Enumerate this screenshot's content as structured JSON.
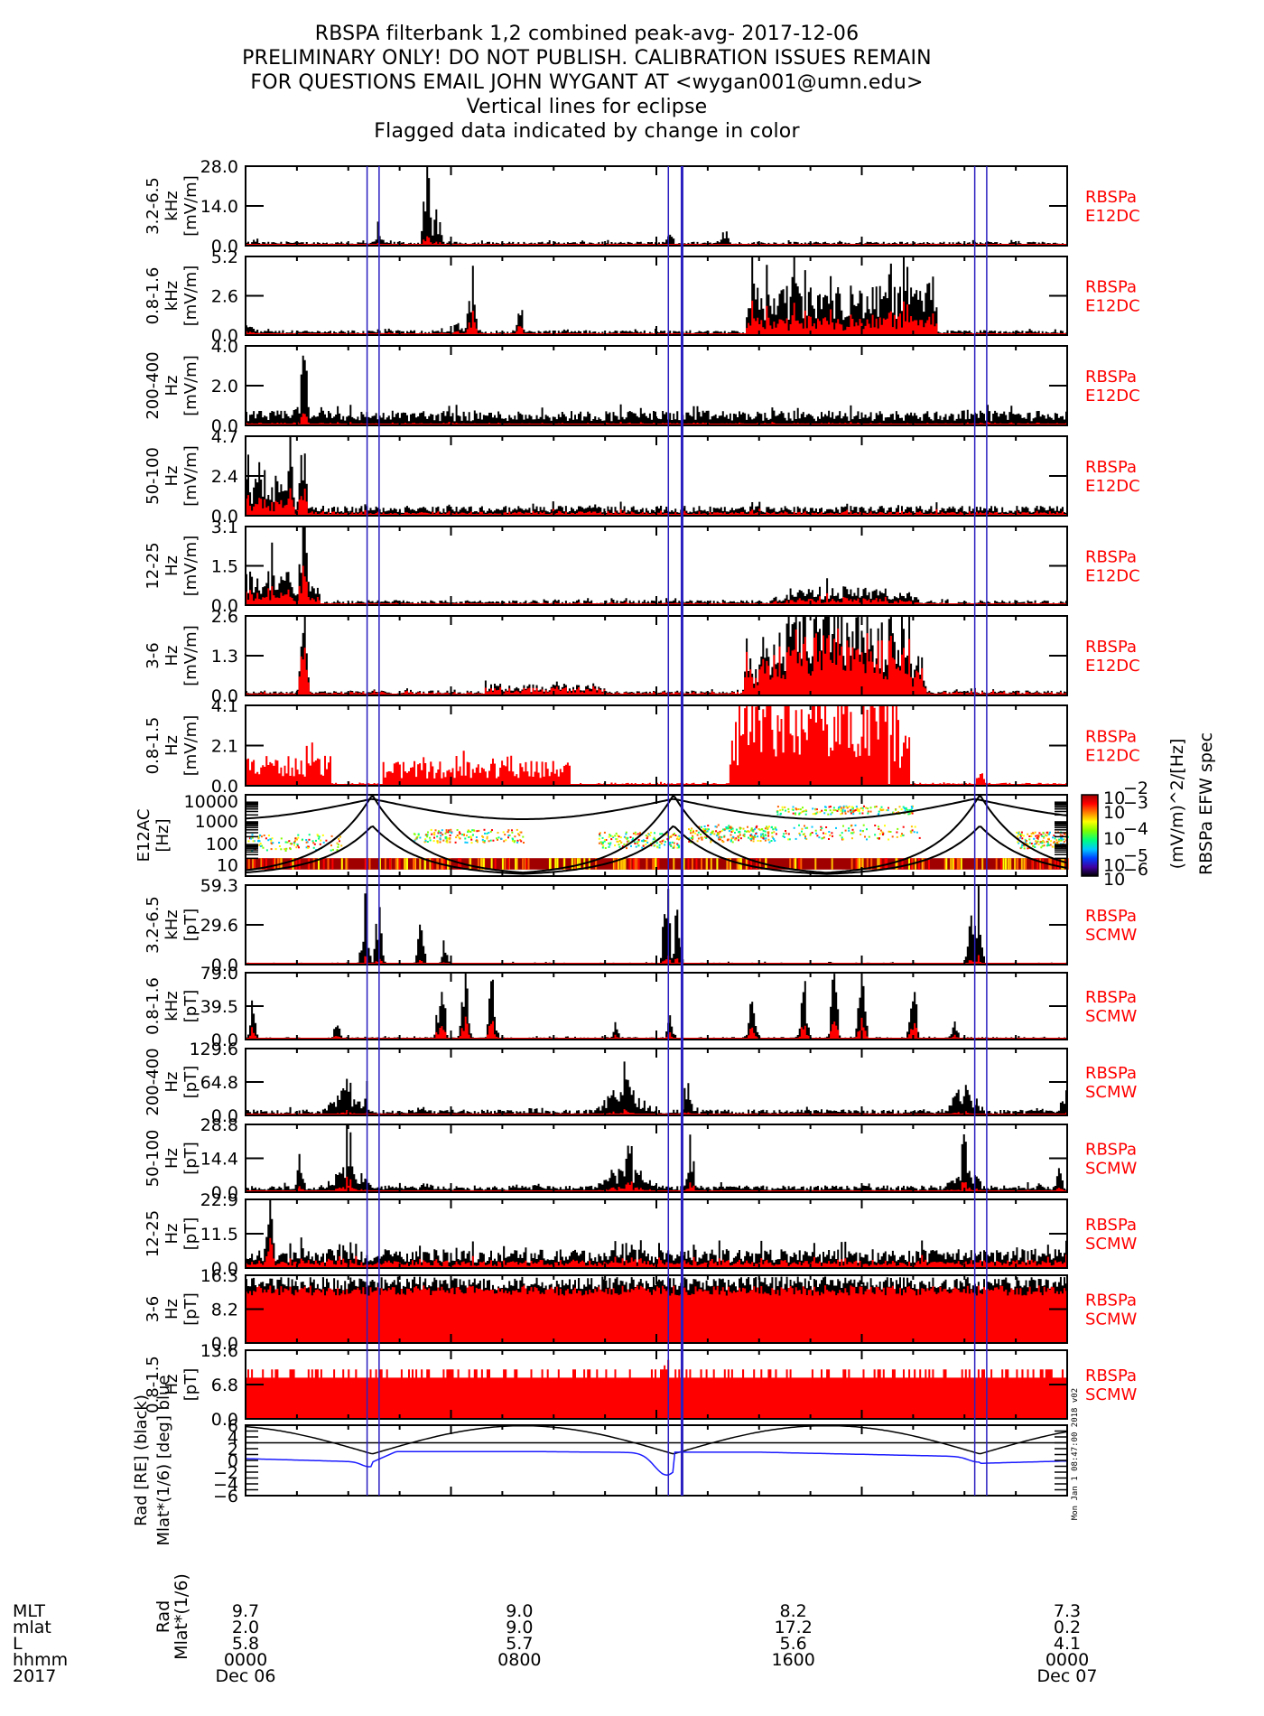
{
  "title": {
    "lines": [
      "RBSPA filterbank 1,2 combined peak-avg- 2017-12-06",
      "PRELIMINARY ONLY! DO NOT PUBLISH. CALIBRATION ISSUES REMAIN",
      "FOR QUESTIONS EMAIL JOHN WYGANT AT <wygan001@umn.edu>",
      "Vertical lines for eclipse",
      "Flagged data indicated by change in color"
    ]
  },
  "colors": {
    "peak": "#000000",
    "avg": "#ff0000",
    "eclipse": "#2a1fc0",
    "side_label": "#ff0000",
    "ephem_black": "#000000",
    "ephem_blue": "#1a1aff"
  },
  "chart_data": {
    "type": "line",
    "title": "RBSPA filterbank 1,2 combined peak-avg- 2017-12-06",
    "x_range_hours": [
      0,
      24
    ],
    "x_ticks_hours": [
      0,
      8,
      16,
      24
    ],
    "eclipse_hours": [
      3.55,
      3.9,
      12.35,
      12.75,
      21.3,
      21.65
    ],
    "panels": [
      {
        "id": "e12dc-3.2-6.5khz",
        "ylabel": [
          "3.2-6.5",
          "kHz",
          "[mV/m]"
        ],
        "yticks": [
          "28.0",
          "14.0",
          "0.0"
        ],
        "ymax": 28.0,
        "side": [
          "RBSPa",
          "E12DC"
        ],
        "profile": "hf",
        "peaks": [
          [
            0.3,
            2.5
          ],
          [
            1.2,
            2.0
          ],
          [
            3.9,
            5
          ],
          [
            5.3,
            25
          ],
          [
            5.6,
            12
          ],
          [
            12.4,
            4
          ],
          [
            14.0,
            6
          ]
        ],
        "avg_frac": 0.15,
        "baseline": 0.04
      },
      {
        "id": "e12dc-0.8-1.6khz",
        "ylabel": [
          "0.8-1.6",
          "kHz",
          "[mV/m]"
        ],
        "yticks": [
          "5.2",
          "2.6",
          "0.0"
        ],
        "ymax": 5.2,
        "side": [
          "RBSPa",
          "E12DC"
        ],
        "profile": "chorus",
        "peaks": [
          [
            0.1,
            1.3
          ],
          [
            6.6,
            3.2
          ],
          [
            6.2,
            1.0
          ],
          [
            8.0,
            1.5
          ],
          [
            14.8,
            5.2
          ],
          [
            16.0,
            5.2
          ],
          [
            17.7,
            5.2
          ],
          [
            18.8,
            5.2
          ],
          [
            19.3,
            5.2
          ],
          [
            20.0,
            5.2
          ]
        ],
        "avg_frac": 0.45,
        "baseline": 0.05
      },
      {
        "id": "e12dc-200-400hz",
        "ylabel": [
          "200-400",
          "Hz",
          "[mV/m]"
        ],
        "yticks": [
          "4.0",
          "2.0",
          "0.0"
        ],
        "ymax": 4.0,
        "side": [
          "RBSPa",
          "E12DC"
        ],
        "profile": "broad",
        "peaks": [
          [
            1.7,
            3.9
          ],
          [
            1.4,
            1.2
          ],
          [
            2.4,
            1.1
          ],
          [
            11.0,
            1.0
          ]
        ],
        "avg_frac": 0.2,
        "baseline": 0.15
      },
      {
        "id": "e12dc-50-100hz",
        "ylabel": [
          "50-100",
          "Hz",
          "[mV/m]"
        ],
        "yticks": [
          "4.7",
          "2.4",
          "0.0"
        ],
        "ymax": 4.7,
        "side": [
          "RBSPa",
          "E12DC"
        ],
        "profile": "early",
        "peaks": [
          [
            1.3,
            4.7
          ],
          [
            1.7,
            4.7
          ],
          [
            1.1,
            3.5
          ],
          [
            0.5,
            2.0
          ],
          [
            11.0,
            0.4
          ]
        ],
        "avg_frac": 0.5,
        "baseline": 0.1
      },
      {
        "id": "e12dc-12-25hz",
        "ylabel": [
          "12-25",
          "Hz",
          "[mV/m]"
        ],
        "yticks": [
          "3.1",
          "1.5",
          "0.0"
        ],
        "ymax": 3.1,
        "side": [
          "RBSPa",
          "E12DC"
        ],
        "profile": "dome-low",
        "peaks": [
          [
            0.8,
            2.2
          ],
          [
            1.7,
            3.1
          ],
          [
            0.2,
            1.0
          ]
        ],
        "avg_frac": 0.5,
        "baseline": 0.05
      },
      {
        "id": "e12dc-3-6hz",
        "ylabel": [
          "3-6",
          "Hz",
          "[mV/m]"
        ],
        "yticks": [
          "2.6",
          "1.3",
          "0.0"
        ],
        "ymax": 2.6,
        "side": [
          "RBSPa",
          "E12DC"
        ],
        "profile": "dome",
        "peaks": [
          [
            1.7,
            2.5
          ],
          [
            14.7,
            1.8
          ],
          [
            15.1,
            2.4
          ]
        ],
        "avg_frac": 0.85,
        "baseline": 0.05
      },
      {
        "id": "e12dc-0.8-1.5hz",
        "ylabel": [
          "0.8-1.5",
          "Hz",
          "[mV/m]"
        ],
        "yticks": [
          "4.1",
          "2.1",
          "0.0"
        ],
        "ymax": 4.1,
        "side": [
          "RBSPa",
          "E12DC"
        ],
        "profile": "block",
        "peaks": [
          [
            14.3,
            3.8
          ],
          [
            21.5,
            1.0
          ]
        ],
        "avg_frac": 1.0,
        "baseline": 0.2
      },
      {
        "id": "e12ac-spec",
        "spectrogram": true,
        "ylabel": [
          "E12AC",
          "[Hz]"
        ],
        "yticks": [
          "10000",
          "1000",
          "100",
          "10"
        ],
        "side": []
      },
      {
        "id": "scmw-3.2-6.5khz",
        "ylabel": [
          "3.2-6.5",
          "kHz",
          "[pT]"
        ],
        "yticks": [
          "59.3",
          "29.6",
          "0.0"
        ],
        "ymax": 59.3,
        "side": [
          "RBSPa",
          "SCMW"
        ],
        "profile": "hf",
        "peaks": [
          [
            3.5,
            59
          ],
          [
            3.9,
            45
          ],
          [
            5.1,
            25
          ],
          [
            5.8,
            12
          ],
          [
            12.3,
            59
          ],
          [
            12.6,
            40
          ],
          [
            21.2,
            30
          ],
          [
            21.4,
            59
          ]
        ],
        "avg_frac": 0.12,
        "baseline": 0.02
      },
      {
        "id": "scmw-0.8-1.6khz",
        "ylabel": [
          "0.8-1.6",
          "kHz",
          "[pT]"
        ],
        "yticks": [
          "79.0",
          "39.5",
          "0.0"
        ],
        "ymax": 79.0,
        "side": [
          "RBSPa",
          "SCMW"
        ],
        "profile": "chorus",
        "peaks": [
          [
            0.2,
            40
          ],
          [
            2.7,
            20
          ],
          [
            5.7,
            79
          ],
          [
            6.4,
            79
          ],
          [
            7.2,
            79
          ],
          [
            10.8,
            20
          ],
          [
            12.4,
            30
          ],
          [
            14.8,
            79
          ],
          [
            16.3,
            79
          ],
          [
            17.2,
            79
          ],
          [
            18.0,
            79
          ],
          [
            19.5,
            79
          ],
          [
            20.7,
            20
          ]
        ],
        "avg_frac": 0.35,
        "baseline": 0.03
      },
      {
        "id": "scmw-200-400hz",
        "ylabel": [
          "200-400",
          "Hz",
          "[pT]"
        ],
        "yticks": [
          "129.6",
          "64.8",
          "0.0"
        ],
        "ymax": 129.6,
        "side": [
          "RBSPa",
          "SCMW"
        ],
        "profile": "humps",
        "peaks": [
          [
            3.0,
            129
          ],
          [
            3.5,
            50
          ],
          [
            11.1,
            100
          ],
          [
            12.9,
            70
          ],
          [
            21.0,
            70
          ],
          [
            23.9,
            60
          ]
        ],
        "avg_frac": 0.15,
        "baseline": 0.07
      },
      {
        "id": "scmw-50-100hz",
        "ylabel": [
          "50-100",
          "Hz",
          "[pT]"
        ],
        "yticks": [
          "28.8",
          "14.4",
          "0.0"
        ],
        "ymax": 28.8,
        "side": [
          "RBSPa",
          "SCMW"
        ],
        "profile": "humps",
        "peaks": [
          [
            3.0,
            28
          ],
          [
            1.6,
            12
          ],
          [
            11.2,
            28
          ],
          [
            13.0,
            20
          ],
          [
            21.0,
            24
          ],
          [
            23.8,
            10
          ]
        ],
        "avg_frac": 0.25,
        "baseline": 0.08
      },
      {
        "id": "scmw-12-25hz",
        "ylabel": [
          "12-25",
          "Hz",
          "[pT]"
        ],
        "yticks": [
          "22.9",
          "11.5",
          "0.0"
        ],
        "ymax": 22.9,
        "side": [
          "RBSPa",
          "SCMW"
        ],
        "profile": "flat",
        "peaks": [
          [
            0.7,
            22.9
          ],
          [
            1.6,
            9
          ]
        ],
        "avg_frac": 0.5,
        "baseline": 0.2
      },
      {
        "id": "scmw-3-6hz",
        "ylabel": [
          "3-6",
          "Hz",
          "[pT]"
        ],
        "yticks": [
          "16.3",
          "8.2",
          "0.0"
        ],
        "ymax": 16.3,
        "side": [
          "RBSPa",
          "SCMW"
        ],
        "profile": "full",
        "peaks": [],
        "avg_frac": 0.82,
        "baseline": 0.75
      },
      {
        "id": "scmw-0.8-1.5hz",
        "ylabel": [
          "0.8-1.5",
          "Hz",
          "[pT]"
        ],
        "yticks": [
          "13.6",
          "6.8",
          "0.0"
        ],
        "ymax": 13.6,
        "side": [
          "RBSPa",
          "SCMW"
        ],
        "profile": "steps",
        "peaks": [
          [
            12.3,
            13.6
          ]
        ],
        "avg_frac": 1.0,
        "baseline": 0.6
      },
      {
        "id": "ephemeris",
        "ephemeris": true,
        "ylabel": [
          "Rad [RE] (black)",
          "Mlat*(1/6) [deg] blue"
        ],
        "yticks": [
          "6",
          "4",
          "2",
          "0",
          "-2",
          "-4",
          "-6"
        ],
        "ymin": -6,
        "ymax": 6,
        "side": []
      }
    ],
    "colorbar": {
      "ticks": [
        "10^-2",
        "10^-3",
        "10^-4",
        "10^-5",
        "10^-6"
      ],
      "unit": "(mV/m)^2/[Hz]",
      "title": "RBSPa EFW spec"
    },
    "footer": {
      "row_labels": [
        "MLT",
        "mlat",
        "L",
        "hhmm",
        "2017"
      ],
      "axis_labels": [
        "Rad",
        "Mlat*(1/6)"
      ],
      "columns": [
        {
          "MLT": "9.7",
          "mlat": "2.0",
          "L": "5.8",
          "hhmm": "0000",
          "date": "Dec 06"
        },
        {
          "MLT": "9.0",
          "mlat": "9.0",
          "L": "5.7",
          "hhmm": "0800",
          "date": ""
        },
        {
          "MLT": "8.2",
          "mlat": "17.2",
          "L": "5.6",
          "hhmm": "1600",
          "date": ""
        },
        {
          "MLT": "7.3",
          "mlat": "0.2",
          "L": "4.1",
          "hhmm": "0000",
          "date": "Dec 07"
        }
      ]
    },
    "timestamp": "Mon Jan 1 08:47:00 2018 v02"
  }
}
